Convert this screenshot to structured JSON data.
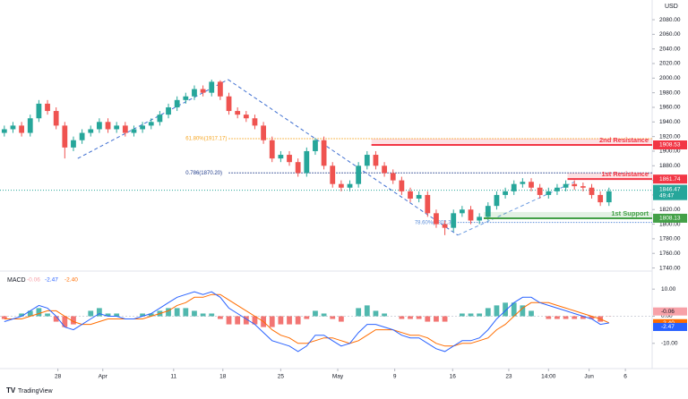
{
  "chart_data": {
    "type": "candlestick",
    "currency": "USD",
    "up_color": "#26a69a",
    "down_color": "#ef5350",
    "open": [
      1925,
      1930,
      1935,
      1925,
      1945,
      1965,
      1955,
      1935,
      1905,
      1915,
      1925,
      1930,
      1940,
      1930,
      1935,
      1925,
      1930,
      1935,
      1940,
      1950,
      1960,
      1970,
      1975,
      1985,
      1980,
      1995,
      1975,
      1955,
      1950,
      1945,
      1935,
      1915,
      1890,
      1895,
      1885,
      1870,
      1900,
      1915,
      1880,
      1855,
      1850,
      1855,
      1880,
      1895,
      1880,
      1870,
      1860,
      1845,
      1835,
      1840,
      1815,
      1800,
      1795,
      1815,
      1820,
      1805,
      1810,
      1825,
      1840,
      1845,
      1855,
      1858,
      1850,
      1840,
      1845,
      1850,
      1855,
      1852,
      1850,
      1840,
      1830
    ],
    "high": [
      1935,
      1940,
      1940,
      1950,
      1970,
      1970,
      1960,
      1940,
      1920,
      1930,
      1935,
      1945,
      1945,
      1940,
      1940,
      1935,
      1940,
      1945,
      1955,
      1965,
      1975,
      1980,
      1990,
      1990,
      1998,
      1997,
      1980,
      1960,
      1955,
      1950,
      1940,
      1920,
      1900,
      1900,
      1890,
      1905,
      1918,
      1920,
      1885,
      1860,
      1860,
      1885,
      1900,
      1900,
      1885,
      1875,
      1865,
      1850,
      1845,
      1845,
      1820,
      1805,
      1820,
      1825,
      1825,
      1815,
      1830,
      1845,
      1850,
      1860,
      1863,
      1863,
      1855,
      1850,
      1855,
      1860,
      1860,
      1857,
      1855,
      1845,
      1850
    ],
    "low": [
      1920,
      1925,
      1920,
      1920,
      1940,
      1950,
      1930,
      1890,
      1900,
      1910,
      1920,
      1925,
      1925,
      1925,
      1920,
      1920,
      1925,
      1930,
      1935,
      1945,
      1955,
      1965,
      1970,
      1975,
      1975,
      1970,
      1950,
      1945,
      1940,
      1930,
      1910,
      1885,
      1885,
      1880,
      1865,
      1865,
      1895,
      1875,
      1850,
      1845,
      1845,
      1850,
      1875,
      1875,
      1865,
      1855,
      1840,
      1830,
      1830,
      1810,
      1795,
      1785,
      1790,
      1810,
      1800,
      1800,
      1805,
      1820,
      1835,
      1840,
      1850,
      1845,
      1835,
      1835,
      1840,
      1845,
      1847,
      1845,
      1835,
      1825,
      1825
    ],
    "close": [
      1930,
      1935,
      1925,
      1945,
      1965,
      1955,
      1935,
      1905,
      1915,
      1925,
      1930,
      1940,
      1930,
      1935,
      1925,
      1930,
      1935,
      1940,
      1950,
      1960,
      1970,
      1975,
      1985,
      1980,
      1995,
      1975,
      1955,
      1950,
      1945,
      1935,
      1915,
      1890,
      1895,
      1885,
      1870,
      1900,
      1915,
      1880,
      1855,
      1850,
      1855,
      1880,
      1895,
      1880,
      1870,
      1860,
      1845,
      1835,
      1840,
      1815,
      1800,
      1795,
      1815,
      1820,
      1805,
      1810,
      1825,
      1840,
      1845,
      1855,
      1858,
      1850,
      1840,
      1845,
      1850,
      1855,
      1852,
      1850,
      1840,
      1830,
      1845
    ],
    "xlim": [
      -0.5,
      75
    ],
    "xticks": [
      {
        "value": 6.2,
        "label": "28"
      },
      {
        "value": 11.4,
        "label": "Apr"
      },
      {
        "value": 19.6,
        "label": "11"
      },
      {
        "value": 25.3,
        "label": "18"
      },
      {
        "value": 32,
        "label": "25"
      },
      {
        "value": 38.6,
        "label": "May"
      },
      {
        "value": 45.2,
        "label": "9"
      },
      {
        "value": 51.9,
        "label": "16"
      },
      {
        "value": 58.4,
        "label": "23"
      },
      {
        "value": 63,
        "label": "14:00"
      },
      {
        "value": 67.7,
        "label": "Jun"
      },
      {
        "value": 71.9,
        "label": "6"
      }
    ],
    "ylim": [
      1737,
      2107
    ],
    "yticks": [
      {
        "value": 2080,
        "label": "2080.00"
      },
      {
        "value": 2060,
        "label": "2060.00"
      },
      {
        "value": 2040,
        "label": "2040.00"
      },
      {
        "value": 2020,
        "label": "2020.00"
      },
      {
        "value": 2000,
        "label": "2000.00"
      },
      {
        "value": 1980,
        "label": "1980.00"
      },
      {
        "value": 1960,
        "label": "1960.00"
      },
      {
        "value": 1940,
        "label": "1940.00"
      },
      {
        "value": 1920,
        "label": "1920.00"
      },
      {
        "value": 1900,
        "label": "1900.00"
      },
      {
        "value": 1880,
        "label": "1880.00"
      },
      {
        "value": 1860,
        "label": "1860.00"
      },
      {
        "value": 1840,
        "label": "1840.00"
      },
      {
        "value": 1820,
        "label": "1820.00"
      },
      {
        "value": 1800,
        "label": "1800.00"
      },
      {
        "value": 1780,
        "label": "1780.00"
      },
      {
        "value": 1760,
        "label": "1760.00"
      },
      {
        "value": 1740,
        "label": "1740.00"
      }
    ],
    "grid": false,
    "levels": [
      {
        "name": "2nd Resistance",
        "value": 1908.53,
        "start": 42.5,
        "color": "#f23645"
      },
      {
        "name": "1st Resistance",
        "value": 1861.74,
        "start": 65.2,
        "color": "#f23645"
      },
      {
        "name": "1st Support",
        "value": 1808.13,
        "start": 55.5,
        "color": "#43a047"
      }
    ],
    "fib_levels": [
      {
        "label": "61.80%(1917.17)",
        "value": 1917.17,
        "start": 21,
        "color": "#f5a623"
      },
      {
        "label": "0.786(1870.20)",
        "value": 1870.2,
        "start": 21,
        "color": "#1e3a8a"
      },
      {
        "label": "78.60%(1802.32)",
        "value": 1802.32,
        "start": 47.5,
        "color": "#5b8dd9"
      }
    ],
    "trend_lines": [
      {
        "points": [
          [
            8.5,
            1890
          ],
          [
            25.9,
            1998
          ]
        ],
        "color": "#3f6fd1"
      },
      {
        "points": [
          [
            25.9,
            1998
          ],
          [
            52.5,
            1785
          ]
        ],
        "color": "#3f6fd1"
      },
      {
        "points": [
          [
            52.5,
            1785
          ],
          [
            66,
            1858
          ]
        ],
        "color": "#6b9be0"
      }
    ],
    "last_price": {
      "value": 1846.47,
      "countdown": "49:47",
      "color": "#26a69a"
    },
    "macd": {
      "title": "MACD",
      "ylim": [
        -17,
        16
      ],
      "yticks": [
        {
          "value": 10,
          "label": "10.00"
        },
        {
          "value": 0,
          "label": "0.00"
        },
        {
          "value": -10,
          "label": "-10.00"
        }
      ],
      "histogram": [
        -1,
        0,
        1,
        2,
        3,
        1,
        -2,
        -4,
        -3,
        0,
        2,
        3,
        1,
        1,
        0,
        0,
        1,
        1,
        2,
        3,
        3,
        3,
        2,
        1,
        1,
        -1,
        -3,
        -3,
        -3,
        -3,
        -4,
        -4,
        -3,
        -3,
        -3,
        -1,
        2,
        1,
        -1,
        -2,
        0,
        3,
        4,
        2,
        1,
        0,
        -1,
        -1,
        -1,
        -2,
        -2,
        -2,
        0,
        1,
        1,
        1,
        3,
        4,
        5,
        5,
        4,
        2,
        0,
        -1,
        -1,
        -1,
        -1,
        -1,
        -1,
        -2,
        -0.06
      ],
      "macd_line": [
        -2,
        -1,
        0,
        2,
        4,
        3,
        0,
        -4,
        -5,
        -3,
        -1,
        1,
        0,
        0,
        -1,
        -1,
        0,
        1,
        3,
        5,
        7,
        8,
        9,
        8,
        9,
        7,
        3,
        1,
        -1,
        -3,
        -6,
        -9,
        -10,
        -11,
        -13,
        -11,
        -7,
        -7,
        -9,
        -11,
        -10,
        -6,
        -3,
        -3,
        -4,
        -5,
        -7,
        -8,
        -8,
        -10,
        -12,
        -13,
        -11,
        -9,
        -9,
        -8,
        -5,
        -1,
        2,
        5,
        7,
        7,
        5,
        4,
        3,
        2,
        1,
        0,
        -1,
        -3,
        -2.47
      ],
      "signal_line": [
        -1,
        -1,
        -1,
        0,
        1,
        2,
        2,
        0,
        -2,
        -3,
        -3,
        -2,
        -1,
        -1,
        -1,
        -1,
        -1,
        0,
        1,
        2,
        4,
        5,
        7,
        7,
        8,
        8,
        6,
        4,
        2,
        0,
        -2,
        -5,
        -7,
        -8,
        -10,
        -10,
        -9,
        -8,
        -8,
        -9,
        -10,
        -9,
        -7,
        -5,
        -5,
        -5,
        -6,
        -7,
        -7,
        -8,
        -10,
        -11,
        -11,
        -10,
        -10,
        -9,
        -8,
        -5,
        -3,
        0,
        3,
        5,
        5,
        5,
        4,
        3,
        2,
        1,
        0,
        -1,
        -2.4
      ],
      "hist_pos_color": "#26a69a",
      "hist_neg_color": "#ef5350",
      "macd_color": "#2962ff",
      "signal_color": "#ff6d00",
      "hist_last": {
        "value": -0.06,
        "color": "#f7a1a8"
      },
      "macd_last": {
        "value": -2.47,
        "color": "#2962ff"
      },
      "signal_last": {
        "value": -2.4,
        "label": "-2.40",
        "color": "#ff6d00"
      }
    },
    "watermark": "TradingView"
  }
}
